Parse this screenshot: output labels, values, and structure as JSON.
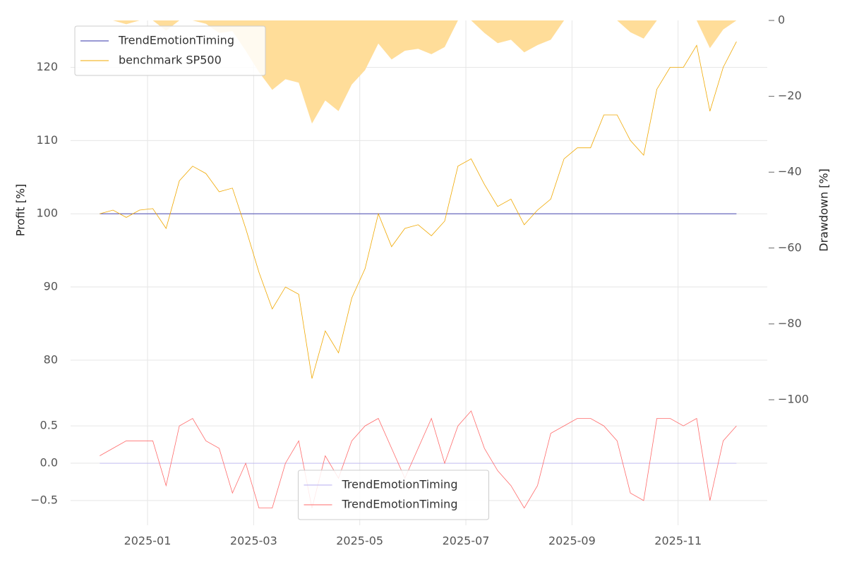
{
  "chart_data": [
    {
      "type": "line",
      "ylabel": "Profit [%]",
      "y2label": "Drawdown [%]",
      "x": [
        -0.9,
        -0.65,
        -0.4,
        -0.15,
        0.1,
        0.35,
        0.6,
        0.85,
        1.1,
        1.35,
        1.6,
        1.85,
        2.1,
        2.35,
        2.6,
        2.85,
        3.1,
        3.35,
        3.6,
        3.85,
        4.1,
        4.35,
        4.6,
        4.85,
        5.1,
        5.35,
        5.6,
        5.85,
        6.1,
        6.35,
        6.6,
        6.85,
        7.1,
        7.35,
        7.6,
        7.85,
        8.1,
        8.35,
        8.6,
        8.85,
        9.1,
        9.35,
        9.6,
        9.85,
        10.1,
        10.35,
        10.6,
        10.85,
        11.1
      ],
      "xlim": [
        -1.45,
        11.68
      ],
      "xticks": [
        0,
        2,
        4,
        6,
        8,
        10
      ],
      "ylim": [
        74.6,
        126.4
      ],
      "yticks": [
        80,
        90,
        100,
        110,
        120
      ],
      "y2lim": [
        -100,
        0
      ],
      "y2ticks": [
        {
          "value": 0,
          "label": "0"
        },
        {
          "value": -20,
          "label": "−20"
        },
        {
          "value": -40,
          "label": "−40"
        },
        {
          "value": -60,
          "label": "−60"
        },
        {
          "value": -80,
          "label": "−80"
        },
        {
          "value": -100,
          "label": "−100"
        }
      ],
      "grid": true,
      "legend": "upper left",
      "series": [
        {
          "name": "TrendEmotionTiming",
          "color": "#3333aa",
          "values": [
            100,
            100,
            100,
            100,
            100,
            100,
            100,
            100,
            100,
            100,
            100,
            100,
            100,
            100,
            100,
            100,
            100,
            100,
            100,
            100,
            100,
            100,
            100,
            100,
            100,
            100,
            100,
            100,
            100,
            100,
            100,
            100,
            100,
            100,
            100,
            100,
            100,
            100,
            100,
            100,
            100,
            100,
            100,
            100,
            100,
            100,
            100,
            100,
            100
          ]
        },
        {
          "name": "benchmark SP500",
          "color": "#f0a800",
          "values": [
            100,
            100.5,
            99.5,
            100.5,
            100.7,
            98,
            104.5,
            106.5,
            105.5,
            103,
            103.5,
            98,
            92,
            87,
            90,
            89,
            77.5,
            84,
            81,
            88.5,
            92.5,
            100,
            95.5,
            98,
            98.5,
            97,
            99,
            106.5,
            107.5,
            104,
            101,
            102,
            98.5,
            100.5,
            102,
            107.5,
            109,
            109,
            113.5,
            113.5,
            110,
            108,
            117,
            120,
            120,
            123,
            114,
            120,
            123.5
          ]
        },
        {
          "color": "#ffdd99",
          "axis": "y2",
          "style": "area",
          "values": [
            0,
            0,
            -1,
            0,
            0,
            -2.7,
            0,
            0,
            -0.9,
            -3.3,
            -2.8,
            -8,
            -13.6,
            -18.3,
            -15.5,
            -16.4,
            -27.2,
            -21.1,
            -23.9,
            -16.9,
            -13.1,
            -6.1,
            -10.3,
            -8,
            -7.5,
            -8.9,
            -7,
            0,
            0,
            -3.3,
            -6,
            -5.1,
            -8.4,
            -6.5,
            -5.1,
            0,
            0,
            0,
            0,
            0,
            -3.1,
            -4.8,
            0,
            0,
            0,
            0,
            -7.3,
            -2.4,
            0
          ]
        }
      ]
    },
    {
      "type": "line",
      "x": [
        -0.9,
        -0.65,
        -0.4,
        -0.15,
        0.1,
        0.35,
        0.6,
        0.85,
        1.1,
        1.35,
        1.6,
        1.85,
        2.1,
        2.35,
        2.6,
        2.85,
        3.1,
        3.35,
        3.6,
        3.85,
        4.1,
        4.35,
        4.6,
        4.85,
        5.1,
        5.35,
        5.6,
        5.85,
        6.1,
        6.35,
        6.6,
        6.85,
        7.1,
        7.35,
        7.6,
        7.85,
        8.1,
        8.35,
        8.6,
        8.85,
        9.1,
        9.35,
        9.6,
        9.85,
        10.1,
        10.35,
        10.6,
        10.85,
        11.1
      ],
      "xlim": [
        -1.45,
        11.68
      ],
      "xticks": [
        {
          "value": 0,
          "label": "2025-01"
        },
        {
          "value": 2,
          "label": "2025-03"
        },
        {
          "value": 4,
          "label": "2025-05"
        },
        {
          "value": 6,
          "label": "2025-07"
        },
        {
          "value": 8,
          "label": "2025-09"
        },
        {
          "value": 10,
          "label": "2025-11"
        }
      ],
      "ylim": [
        -0.83,
        0.85
      ],
      "yticks": [
        {
          "value": 0.5,
          "label": "0.5"
        },
        {
          "value": 0,
          "label": "0.0"
        },
        {
          "value": -0.5,
          "label": "−0.5"
        }
      ],
      "grid": true,
      "legend": "lower center",
      "series": [
        {
          "name": "TrendEmotionTiming",
          "color": "#b4acf0",
          "values": [
            0,
            0,
            0,
            0,
            0,
            0,
            0,
            0,
            0,
            0,
            0,
            0,
            0,
            0,
            0,
            0,
            0,
            0,
            0,
            0,
            0,
            0,
            0,
            0,
            0,
            0,
            0,
            0,
            0,
            0,
            0,
            0,
            0,
            0,
            0,
            0,
            0,
            0,
            0,
            0,
            0,
            0,
            0,
            0,
            0,
            0,
            0,
            0,
            0
          ]
        },
        {
          "name": "TrendEmotionTiming",
          "color": "#ff6b6b",
          "values": [
            0.1,
            0.2,
            0.3,
            0.3,
            0.3,
            -0.3,
            0.5,
            0.6,
            0.3,
            0.2,
            -0.4,
            0.0,
            -0.6,
            -0.6,
            0.0,
            0.3,
            -0.6,
            0.1,
            -0.2,
            0.3,
            0.5,
            0.6,
            0.2,
            -0.2,
            0.2,
            0.6,
            0.0,
            0.5,
            0.7,
            0.2,
            -0.1,
            -0.3,
            -0.6,
            -0.3,
            0.4,
            0.5,
            0.6,
            0.6,
            0.5,
            0.3,
            -0.4,
            -0.5,
            0.6,
            0.6,
            0.5,
            0.6,
            -0.5,
            0.3,
            0.5
          ]
        }
      ]
    }
  ]
}
